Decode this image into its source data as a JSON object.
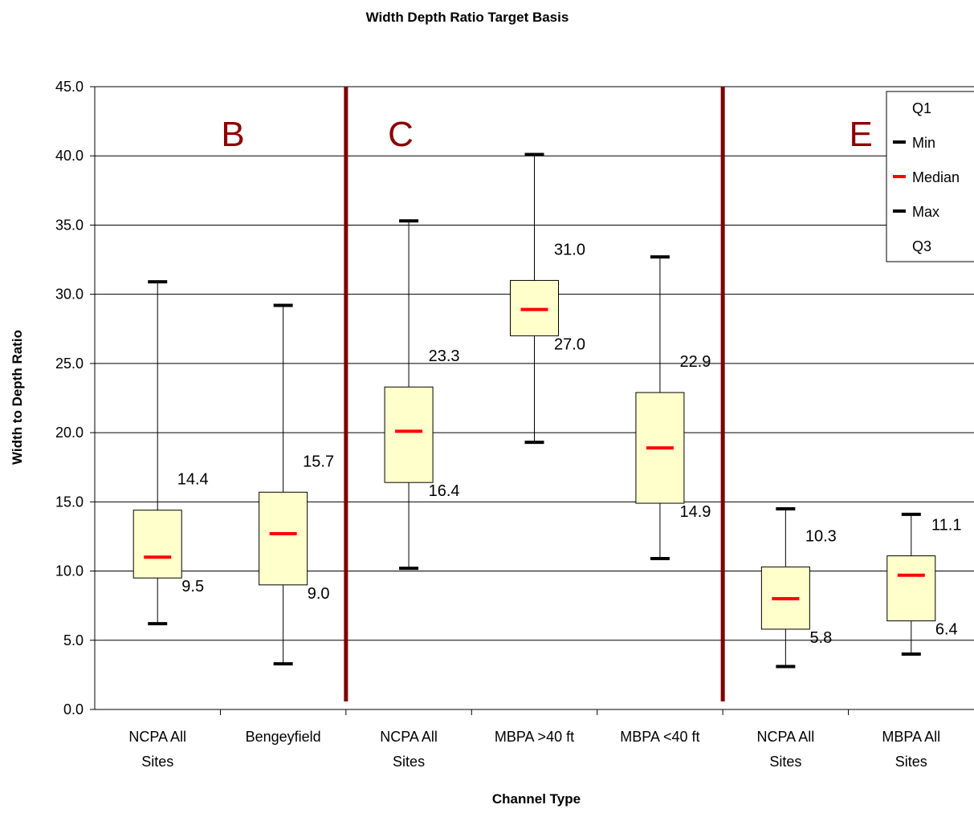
{
  "chart_data": {
    "type": "boxplot",
    "title": "Width Depth Ratio Target Basis",
    "xlabel": "Channel Type",
    "ylabel": "Width to Depth Ratio",
    "ylim": [
      0,
      45
    ],
    "yticks": [
      "0.0",
      "5.0",
      "10.0",
      "15.0",
      "20.0",
      "25.0",
      "30.0",
      "35.0",
      "40.0",
      "45.0"
    ],
    "grid": "horizontal",
    "legend_position": "top-right",
    "legend": [
      {
        "label": "Q1",
        "marker": "none"
      },
      {
        "label": "Min",
        "marker": "black-dash"
      },
      {
        "label": "Median",
        "marker": "red-dash"
      },
      {
        "label": "Max",
        "marker": "black-dash"
      },
      {
        "label": "Q3",
        "marker": "none"
      }
    ],
    "categories": [
      [
        "NCPA All",
        "Sites"
      ],
      [
        "Bengeyfield"
      ],
      [
        "NCPA All",
        "Sites"
      ],
      [
        "MBPA >40 ft"
      ],
      [
        "MBPA <40 ft"
      ],
      [
        "NCPA All",
        "Sites"
      ],
      [
        "MBPA All",
        "Sites"
      ]
    ],
    "boxes": [
      {
        "min": 6.2,
        "q1": 9.5,
        "median": 11.0,
        "q3": 14.4,
        "max": 30.9,
        "q3_label": "14.4",
        "q1_label": "9.5"
      },
      {
        "min": 3.3,
        "q1": 9.0,
        "median": 12.7,
        "q3": 15.7,
        "max": 29.2,
        "q3_label": "15.7",
        "q1_label": "9.0"
      },
      {
        "min": 10.2,
        "q1": 16.4,
        "median": 20.1,
        "q3": 23.3,
        "max": 35.3,
        "q3_label": "23.3",
        "q1_label": "16.4"
      },
      {
        "min": 19.3,
        "q1": 27.0,
        "median": 28.9,
        "q3": 31.0,
        "max": 40.1,
        "q3_label": "31.0",
        "q1_label": "27.0"
      },
      {
        "min": 10.9,
        "q1": 14.9,
        "median": 18.9,
        "q3": 22.9,
        "max": 32.7,
        "q3_label": "22.9",
        "q1_label": "14.9"
      },
      {
        "min": 3.1,
        "q1": 5.8,
        "median": 8.0,
        "q3": 10.3,
        "max": 14.5,
        "q3_label": "10.3",
        "q1_label": "5.8"
      },
      {
        "min": 4.0,
        "q1": 6.4,
        "median": 9.7,
        "q3": 11.1,
        "max": 14.1,
        "q3_label": "11.1",
        "q1_label": "6.4"
      }
    ],
    "groups": [
      {
        "label": "B",
        "category_span": [
          0,
          1
        ]
      },
      {
        "label": "C",
        "category_span": [
          2,
          4
        ]
      },
      {
        "label": "E",
        "category_span": [
          5,
          6
        ]
      }
    ],
    "group_dividers_after_category": [
      1,
      4
    ],
    "colors": {
      "box_fill": "#ffffcc",
      "median": "#ff0000",
      "whisker_cap": "#000000",
      "divider": "#7f0000",
      "group_label": "#8b0000",
      "grid": "#000000"
    }
  }
}
